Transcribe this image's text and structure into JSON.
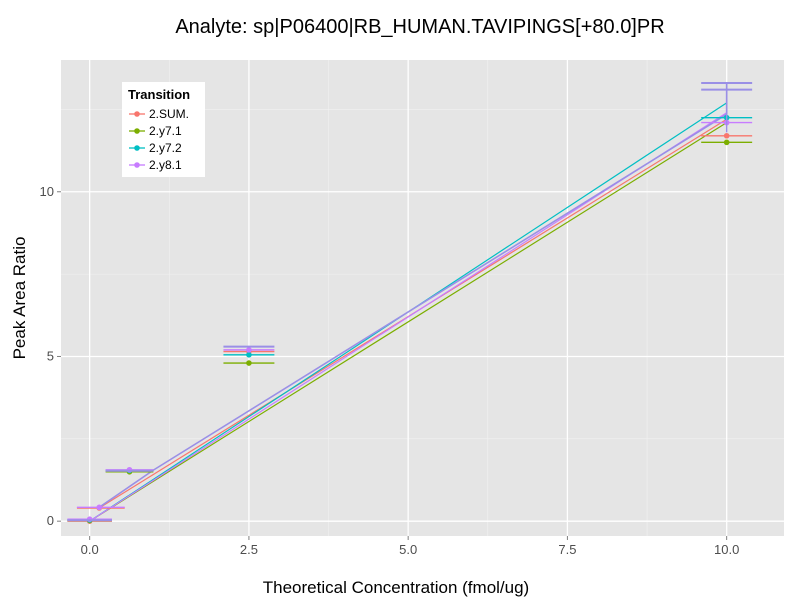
{
  "chart_data": {
    "type": "scatter",
    "title": "Analyte: sp|P06400|RB_HUMAN.TAVIPINGS[+80.0]PR",
    "xlabel": "Theoretical Concentration (fmol/ug)",
    "ylabel": "Peak Area Ratio",
    "xlim": [
      -0.45,
      10.9
    ],
    "ylim": [
      -0.45,
      14.0
    ],
    "xticks": [
      0.0,
      2.5,
      5.0,
      7.5,
      10.0
    ],
    "xtick_labels": [
      "0.0",
      "2.5",
      "5.0",
      "7.5",
      "10.0"
    ],
    "yticks": [
      0,
      5,
      10
    ],
    "ytick_labels": [
      "0",
      "5",
      "10"
    ],
    "grid": true,
    "legend": {
      "title": "Transition",
      "position": "top-left"
    },
    "series": [
      {
        "name": "2.SUM.",
        "color": "#F8766D",
        "points": [
          {
            "x": 0.0,
            "y": 0.0,
            "xmin": -0.35,
            "xmax": 0.35
          },
          {
            "x": 0.15,
            "y": 0.4,
            "xmin": -0.2,
            "xmax": 0.55
          },
          {
            "x": 0.625,
            "y": 1.52,
            "xmin": 0.25,
            "xmax": 1.0
          },
          {
            "x": 2.5,
            "y": 5.15,
            "xmin": 2.1,
            "xmax": 2.9
          },
          {
            "x": 10.0,
            "y": 11.7,
            "xmin": 9.6,
            "xmax": 10.4
          }
        ],
        "fit": [
          [
            0.15,
            0.4
          ],
          [
            10.0,
            12.2
          ]
        ]
      },
      {
        "name": "2.y7.1",
        "color": "#7CAE00",
        "points": [
          {
            "x": 0.0,
            "y": 0.02,
            "xmin": -0.35,
            "xmax": 0.35
          },
          {
            "x": 0.625,
            "y": 1.5,
            "xmin": 0.25,
            "xmax": 1.0
          },
          {
            "x": 2.5,
            "y": 4.8,
            "xmin": 2.1,
            "xmax": 2.9
          },
          {
            "x": 10.0,
            "y": 11.5,
            "xmin": 9.6,
            "xmax": 10.4
          }
        ],
        "fit": [
          [
            0.0,
            0.0
          ],
          [
            10.0,
            12.1
          ]
        ]
      },
      {
        "name": "2.y7.2",
        "color": "#00BFC4",
        "points": [
          {
            "x": 0.0,
            "y": 0.04,
            "xmin": -0.35,
            "xmax": 0.35
          },
          {
            "x": 0.625,
            "y": 1.54,
            "xmin": 0.25,
            "xmax": 1.0
          },
          {
            "x": 2.5,
            "y": 5.05,
            "xmin": 2.1,
            "xmax": 2.9
          },
          {
            "x": 10.0,
            "y": 12.25,
            "xmin": 9.6,
            "xmax": 10.4
          }
        ],
        "fit": [
          [
            0.0,
            0.0
          ],
          [
            10.0,
            12.7
          ]
        ]
      },
      {
        "name": "2.y8.1",
        "color": "#C77CFF",
        "points": [
          {
            "x": 0.0,
            "y": 0.06,
            "xmin": -0.35,
            "xmax": 0.35
          },
          {
            "x": 0.15,
            "y": 0.42,
            "xmin": -0.2,
            "xmax": 0.55
          },
          {
            "x": 0.625,
            "y": 1.56,
            "xmin": 0.25,
            "xmax": 1.0
          },
          {
            "x": 2.5,
            "y": 5.2,
            "xmin": 2.1,
            "xmax": 2.9
          },
          {
            "x": 10.0,
            "y": 12.1,
            "xmin": 9.6,
            "xmax": 10.4
          }
        ],
        "fit": [
          [
            0.0,
            0.0
          ],
          [
            10.0,
            12.4
          ]
        ]
      }
    ],
    "average": {
      "color": "#9A8FE6",
      "points": [
        {
          "x": 0.0,
          "y": 0.03,
          "xmin": -0.35,
          "xmax": 0.35
        },
        {
          "x": 0.625,
          "y": 1.53,
          "xmin": 0.25,
          "xmax": 1.0
        },
        {
          "x": 2.5,
          "y": 5.3,
          "xmin": 2.1,
          "xmax": 2.9
        },
        {
          "x": 10.0,
          "y": 13.3,
          "xmin": 9.6,
          "xmax": 10.4
        },
        {
          "x": 10.0,
          "y": 13.1,
          "xmin": 9.6,
          "xmax": 10.4
        }
      ],
      "path": [
        [
          0.15,
          0.42
        ],
        [
          1.0,
          1.55
        ],
        [
          10.0,
          12.35
        ],
        [
          10.0,
          13.3
        ]
      ]
    }
  }
}
